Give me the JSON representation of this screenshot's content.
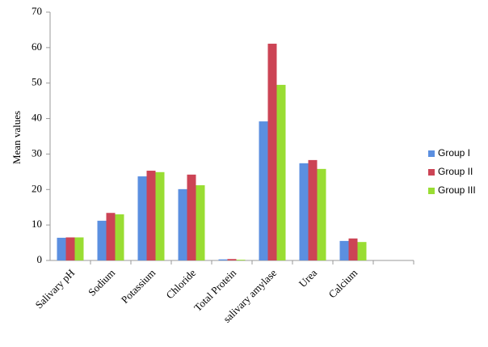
{
  "chart_data": {
    "type": "bar",
    "y_label": "Mean values",
    "categories": [
      "Salivary pH",
      "Sodium",
      "Potassium",
      "Chloride",
      "Total Protein",
      "salivary amylase",
      "Urea",
      "Calcium",
      null
    ],
    "series": [
      {
        "name": "Group I",
        "color": "#5b8fe0",
        "values": [
          6.4,
          11.2,
          23.7,
          20.1,
          0.3,
          39.2,
          27.4,
          5.5,
          null
        ]
      },
      {
        "name": "Group II",
        "color": "#cc4455",
        "values": [
          6.5,
          13.4,
          25.3,
          24.2,
          0.4,
          61.1,
          28.3,
          6.2,
          null
        ]
      },
      {
        "name": "Group III",
        "color": "#99dd33",
        "values": [
          6.5,
          13.0,
          24.9,
          21.2,
          0.2,
          49.5,
          25.8,
          5.2,
          null
        ]
      }
    ],
    "ylim": [
      0,
      70
    ],
    "yticks": [
      0,
      10,
      20,
      30,
      40,
      50,
      60,
      70
    ],
    "grid": false,
    "legend": "right"
  }
}
